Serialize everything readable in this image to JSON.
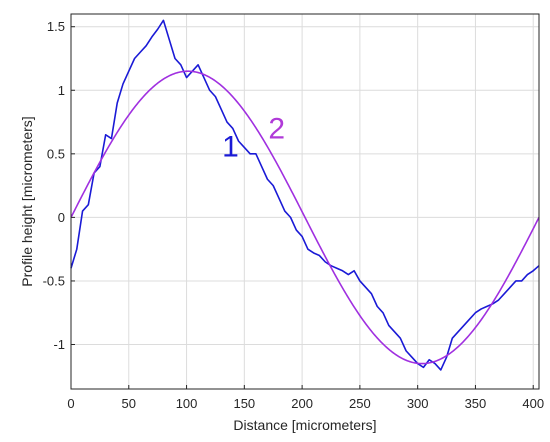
{
  "chart_data": {
    "type": "line",
    "title": "",
    "xlabel": "Distance [micrometers]",
    "ylabel": "Profile height [micrometers]",
    "xlim": [
      0,
      405
    ],
    "ylim": [
      -1.35,
      1.6
    ],
    "xticks": [
      0,
      50,
      100,
      150,
      200,
      250,
      300,
      350,
      400
    ],
    "yticks": [
      -1,
      -0.5,
      0,
      0.5,
      1,
      1.5
    ],
    "xtick_labels": [
      "0",
      "50",
      "100",
      "150",
      "200",
      "250",
      "300",
      "350",
      "400"
    ],
    "ytick_labels": [
      "-1",
      "-0.5",
      "0",
      "0.5",
      "1",
      "1.5"
    ],
    "grid": true,
    "series": [
      {
        "name": "1",
        "color": "#1a1ad6",
        "x": [
          0,
          5,
          10,
          15,
          20,
          25,
          30,
          35,
          40,
          45,
          50,
          55,
          60,
          65,
          70,
          75,
          80,
          85,
          90,
          95,
          100,
          105,
          110,
          115,
          120,
          125,
          130,
          135,
          140,
          145,
          150,
          155,
          160,
          165,
          170,
          175,
          180,
          185,
          190,
          195,
          200,
          205,
          210,
          215,
          220,
          225,
          230,
          235,
          240,
          245,
          250,
          255,
          260,
          265,
          270,
          275,
          280,
          285,
          290,
          295,
          300,
          305,
          310,
          315,
          320,
          325,
          330,
          335,
          340,
          345,
          350,
          355,
          360,
          365,
          370,
          375,
          380,
          385,
          390,
          395,
          400,
          405
        ],
        "values": [
          -0.4,
          -0.25,
          0.05,
          0.1,
          0.35,
          0.4,
          0.65,
          0.62,
          0.9,
          1.05,
          1.15,
          1.25,
          1.3,
          1.35,
          1.42,
          1.48,
          1.55,
          1.4,
          1.25,
          1.2,
          1.1,
          1.15,
          1.2,
          1.1,
          1.0,
          0.95,
          0.85,
          0.75,
          0.7,
          0.6,
          0.55,
          0.5,
          0.5,
          0.4,
          0.3,
          0.25,
          0.15,
          0.05,
          0.0,
          -0.1,
          -0.15,
          -0.25,
          -0.28,
          -0.3,
          -0.35,
          -0.38,
          -0.4,
          -0.42,
          -0.45,
          -0.42,
          -0.5,
          -0.55,
          -0.6,
          -0.7,
          -0.75,
          -0.85,
          -0.9,
          -0.95,
          -1.05,
          -1.1,
          -1.15,
          -1.18,
          -1.12,
          -1.15,
          -1.2,
          -1.1,
          -0.95,
          -0.9,
          -0.85,
          -0.8,
          -0.75,
          -0.72,
          -0.7,
          -0.68,
          -0.65,
          -0.6,
          -0.55,
          -0.5,
          -0.5,
          -0.45,
          -0.42,
          -0.38
        ]
      },
      {
        "name": "2",
        "color": "#a030e0",
        "function": "sine",
        "amplitude": 1.15,
        "period": 405,
        "phase": 0
      }
    ],
    "annotations": [
      {
        "text": "1",
        "color": "#1a1ad6",
        "x": 138,
        "y": 0.48
      },
      {
        "text": "2",
        "color": "#b03ad8",
        "x": 178,
        "y": 0.62
      }
    ]
  }
}
